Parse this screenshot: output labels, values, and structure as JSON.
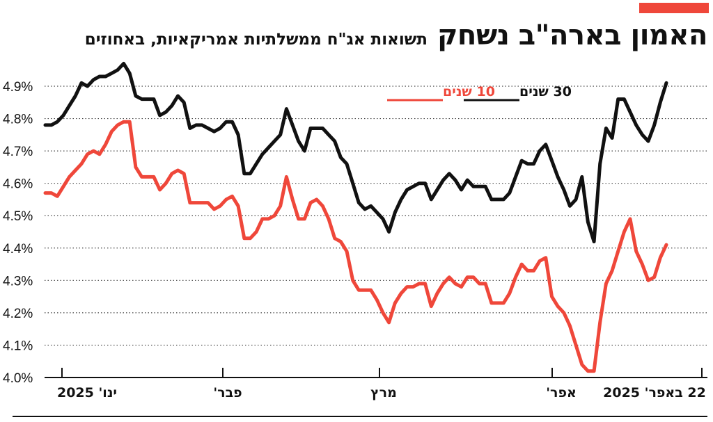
{
  "header": {
    "title": "האמון בארה\"ב נשחק",
    "subtitle": "תשואות אג\"ח ממשלתיות אמריקאיות, באחוזים"
  },
  "colors": {
    "accent": "#ef473a",
    "series_10y": "#ef473a",
    "series_30y": "#111111",
    "grid": "#444444"
  },
  "chart_data": {
    "type": "line",
    "title": "האמון בארה\"ב נשחק",
    "subtitle": "תשואות אג\"ח ממשלתיות אמריקאיות, באחוזים",
    "xlabel": "",
    "ylabel": "",
    "ylim": [
      4.0,
      4.95
    ],
    "y_ticks": [
      "4.0%",
      "4.1%",
      "4.2%",
      "4.3%",
      "4.4%",
      "4.5%",
      "4.6%",
      "4.7%",
      "4.8%",
      "4.9%"
    ],
    "x_ticks": [
      "ינו' 2025",
      "פבר'",
      "מרץ",
      "אפר'",
      "22 באפר' 2025"
    ],
    "grid": "horizontal dotted",
    "legend_position": "top",
    "series": [
      {
        "name": "30 שנים",
        "color": "#111111",
        "values": [
          4.78,
          4.78,
          4.79,
          4.81,
          4.84,
          4.87,
          4.91,
          4.9,
          4.92,
          4.93,
          4.93,
          4.94,
          4.95,
          4.97,
          4.94,
          4.87,
          4.86,
          4.86,
          4.86,
          4.81,
          4.82,
          4.84,
          4.87,
          4.85,
          4.77,
          4.78,
          4.78,
          4.77,
          4.76,
          4.77,
          4.79,
          4.79,
          4.75,
          4.63,
          4.63,
          4.66,
          4.69,
          4.71,
          4.73,
          4.75,
          4.83,
          4.78,
          4.73,
          4.7,
          4.77,
          4.77,
          4.77,
          4.75,
          4.73,
          4.68,
          4.66,
          4.6,
          4.54,
          4.52,
          4.53,
          4.51,
          4.49,
          4.45,
          4.51,
          4.55,
          4.58,
          4.59,
          4.6,
          4.6,
          4.55,
          4.58,
          4.61,
          4.63,
          4.61,
          4.58,
          4.61,
          4.59,
          4.59,
          4.59,
          4.55,
          4.55,
          4.55,
          4.57,
          4.62,
          4.67,
          4.66,
          4.66,
          4.7,
          4.72,
          4.67,
          4.62,
          4.58,
          4.53,
          4.55,
          4.62,
          4.48,
          4.42,
          4.66,
          4.77,
          4.74,
          4.86,
          4.86,
          4.82,
          4.78,
          4.75,
          4.73,
          4.78,
          4.85,
          4.91
        ]
      },
      {
        "name": "10 שנים",
        "color": "#ef473a",
        "values": [
          4.57,
          4.57,
          4.56,
          4.59,
          4.62,
          4.64,
          4.66,
          4.69,
          4.7,
          4.69,
          4.72,
          4.76,
          4.78,
          4.79,
          4.79,
          4.65,
          4.62,
          4.62,
          4.62,
          4.58,
          4.6,
          4.63,
          4.64,
          4.63,
          4.54,
          4.54,
          4.54,
          4.54,
          4.52,
          4.53,
          4.55,
          4.56,
          4.53,
          4.43,
          4.43,
          4.45,
          4.49,
          4.49,
          4.5,
          4.53,
          4.62,
          4.55,
          4.49,
          4.49,
          4.54,
          4.55,
          4.53,
          4.49,
          4.43,
          4.42,
          4.39,
          4.3,
          4.27,
          4.27,
          4.27,
          4.24,
          4.2,
          4.17,
          4.23,
          4.26,
          4.28,
          4.28,
          4.29,
          4.29,
          4.22,
          4.26,
          4.29,
          4.31,
          4.29,
          4.28,
          4.31,
          4.31,
          4.29,
          4.29,
          4.23,
          4.23,
          4.23,
          4.26,
          4.31,
          4.35,
          4.33,
          4.33,
          4.36,
          4.37,
          4.25,
          4.22,
          4.2,
          4.16,
          4.1,
          4.04,
          4.02,
          4.02,
          4.17,
          4.29,
          4.33,
          4.39,
          4.45,
          4.49,
          4.39,
          4.35,
          4.3,
          4.31,
          4.37,
          4.41
        ]
      }
    ]
  }
}
